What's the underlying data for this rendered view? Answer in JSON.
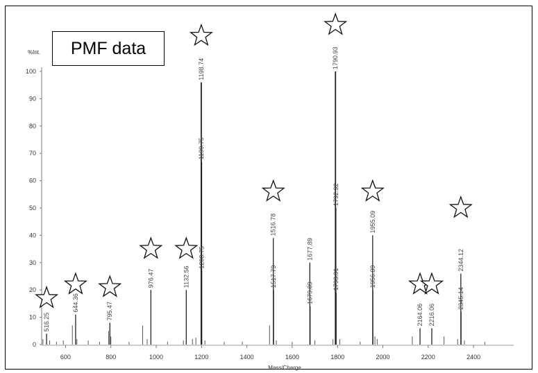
{
  "header": {
    "box_title": "PMF data"
  },
  "chart_data": {
    "type": "line",
    "title": "",
    "xlabel": "Mass/Charge",
    "ylabel": "%Int.",
    "xlim": [
      470,
      2510
    ],
    "ylim": [
      0,
      100
    ],
    "x_ticks": [
      600,
      800,
      1000,
      1200,
      1400,
      1600,
      1800,
      2000,
      2200,
      2400
    ],
    "y_ticks": [
      0,
      10,
      20,
      30,
      40,
      50,
      60,
      70,
      80,
      90,
      100
    ],
    "labeled_peaks": [
      {
        "x": 516.25,
        "y": 4,
        "label": "516.25"
      },
      {
        "x": 644.36,
        "y": 11,
        "label": "644.36"
      },
      {
        "x": 795.47,
        "y": 8,
        "label": "795.47"
      },
      {
        "x": 976.47,
        "y": 20,
        "label": "976.47"
      },
      {
        "x": 1132.56,
        "y": 20,
        "label": "1132.56"
      },
      {
        "x": 1198.74,
        "y": 96,
        "label": "1198.74"
      },
      {
        "x": 1199.75,
        "y": 67,
        "label": "1199.75"
      },
      {
        "x": 1200.75,
        "y": 27,
        "label": "1200.75"
      },
      {
        "x": 1516.78,
        "y": 39,
        "label": "1516.78"
      },
      {
        "x": 1517.79,
        "y": 20,
        "label": "1517.79"
      },
      {
        "x": 1677.89,
        "y": 30,
        "label": "1677.89"
      },
      {
        "x": 1679.09,
        "y": 14,
        "label": "1679.09"
      },
      {
        "x": 1790.93,
        "y": 100,
        "label": "1790.93"
      },
      {
        "x": 1792.92,
        "y": 50,
        "label": "1792.92"
      },
      {
        "x": 1793.91,
        "y": 19,
        "label": "1793.91"
      },
      {
        "x": 1955.09,
        "y": 40,
        "label": "1955.09"
      },
      {
        "x": 1956.09,
        "y": 20,
        "label": "1956.09"
      },
      {
        "x": 2164.06,
        "y": 6,
        "label": "2164.06"
      },
      {
        "x": 2216.06,
        "y": 6,
        "label": "2216.06"
      },
      {
        "x": 2344.12,
        "y": 26,
        "label": "2344.12"
      },
      {
        "x": 2345.14,
        "y": 12,
        "label": "2345.14"
      }
    ],
    "minor_peaks": [
      {
        "x": 500,
        "y": 2
      },
      {
        "x": 530,
        "y": 1.5
      },
      {
        "x": 560,
        "y": 1
      },
      {
        "x": 590,
        "y": 1.5
      },
      {
        "x": 630,
        "y": 7
      },
      {
        "x": 650,
        "y": 2
      },
      {
        "x": 700,
        "y": 1.5
      },
      {
        "x": 750,
        "y": 1
      },
      {
        "x": 790,
        "y": 5
      },
      {
        "x": 800,
        "y": 3
      },
      {
        "x": 880,
        "y": 1
      },
      {
        "x": 940,
        "y": 7
      },
      {
        "x": 960,
        "y": 2
      },
      {
        "x": 1050,
        "y": 1
      },
      {
        "x": 1120,
        "y": 1.5
      },
      {
        "x": 1160,
        "y": 2
      },
      {
        "x": 1175,
        "y": 2.5
      },
      {
        "x": 1215,
        "y": 1.5
      },
      {
        "x": 1300,
        "y": 1
      },
      {
        "x": 1380,
        "y": 1
      },
      {
        "x": 1500,
        "y": 7
      },
      {
        "x": 1530,
        "y": 1.5
      },
      {
        "x": 1600,
        "y": 1
      },
      {
        "x": 1700,
        "y": 1.5
      },
      {
        "x": 1780,
        "y": 2
      },
      {
        "x": 1810,
        "y": 2
      },
      {
        "x": 1900,
        "y": 1
      },
      {
        "x": 1965,
        "y": 3
      },
      {
        "x": 1975,
        "y": 2
      },
      {
        "x": 2130,
        "y": 3
      },
      {
        "x": 2270,
        "y": 3
      },
      {
        "x": 2330,
        "y": 2
      },
      {
        "x": 2360,
        "y": 1.5
      },
      {
        "x": 2450,
        "y": 1
      }
    ],
    "star_markers": [
      {
        "x": 516.25,
        "y": 17
      },
      {
        "x": 644.36,
        "y": 22
      },
      {
        "x": 795.47,
        "y": 21
      },
      {
        "x": 976.47,
        "y": 35
      },
      {
        "x": 1132.56,
        "y": 35
      },
      {
        "x": 1198.74,
        "y": 113
      },
      {
        "x": 1516.78,
        "y": 56
      },
      {
        "x": 1790.93,
        "y": 117
      },
      {
        "x": 1955.09,
        "y": 56
      },
      {
        "x": 2164.06,
        "y": 22
      },
      {
        "x": 2216.06,
        "y": 22
      },
      {
        "x": 2344.12,
        "y": 50
      }
    ]
  }
}
